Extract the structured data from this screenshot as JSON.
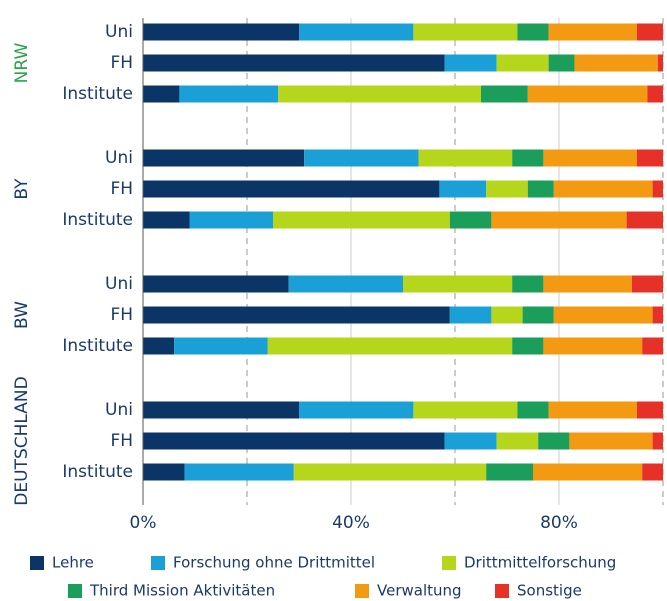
{
  "chart_data": {
    "type": "stacked-bar-horizontal",
    "groups": [
      {
        "name": "NRW",
        "color": "#2aa34a",
        "categories": [
          "Uni",
          "FH",
          "Institute"
        ]
      },
      {
        "name": "BY",
        "color": "#1a3a6a",
        "categories": [
          "Uni",
          "FH",
          "Institute"
        ]
      },
      {
        "name": "BW",
        "color": "#1a3a6a",
        "categories": [
          "Uni",
          "FH",
          "Institute"
        ]
      },
      {
        "name": "DEUTSCHLAND",
        "color": "#1a3a6a",
        "categories": [
          "Uni",
          "FH",
          "Institute"
        ]
      }
    ],
    "series": [
      {
        "name": "Lehre",
        "color": "#0b3566",
        "values": [
          30,
          58,
          7,
          31,
          57,
          9,
          28,
          59,
          6,
          30,
          58,
          8
        ]
      },
      {
        "name": "Forschung ohne Drittmittel",
        "color": "#1aa0d6",
        "values": [
          22,
          10,
          19,
          22,
          9,
          16,
          22,
          8,
          18,
          22,
          10,
          21
        ]
      },
      {
        "name": "Drittmittelforschung",
        "color": "#b5d61a",
        "values": [
          20,
          10,
          39,
          18,
          8,
          34,
          21,
          6,
          47,
          20,
          8,
          37
        ]
      },
      {
        "name": "Third Mission Aktivitäten",
        "color": "#1a9e5a",
        "values": [
          6,
          5,
          9,
          6,
          5,
          8,
          6,
          6,
          6,
          6,
          6,
          9
        ]
      },
      {
        "name": "Verwaltung",
        "color": "#f39a12",
        "values": [
          17,
          16,
          23,
          18,
          19,
          26,
          17,
          19,
          19,
          17,
          16,
          21
        ]
      },
      {
        "name": "Sonstige",
        "color": "#e53127",
        "values": [
          5,
          1,
          3,
          5,
          2,
          7,
          6,
          2,
          4,
          5,
          2,
          4
        ]
      }
    ],
    "xlim": [
      0,
      100
    ],
    "xticks": [
      {
        "value": 0,
        "label": "0%"
      },
      {
        "value": 40,
        "label": "40%"
      },
      {
        "value": 80,
        "label": "80%"
      }
    ],
    "xminor_ticks": [
      20,
      60,
      100
    ],
    "legend": "bottom"
  }
}
